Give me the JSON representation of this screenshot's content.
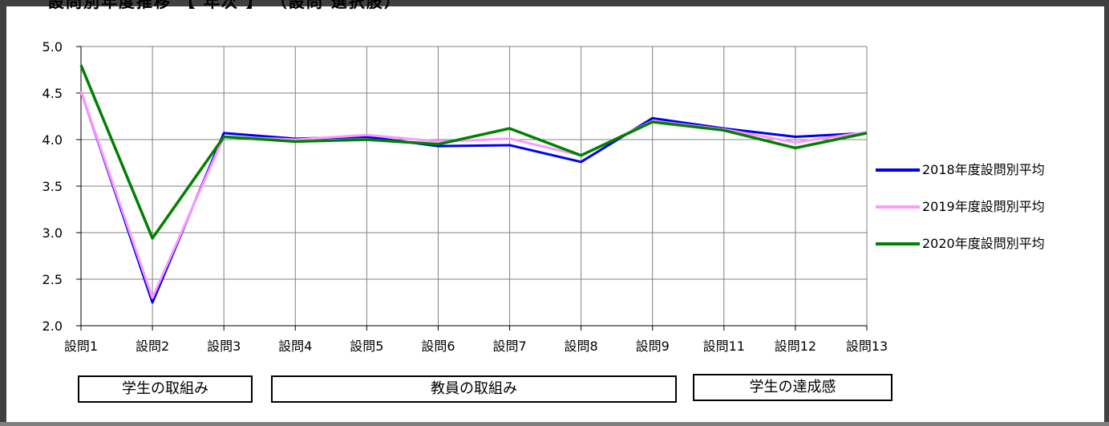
{
  "title": "設問別年度推移 【 年次 】 （設問 選択肢）",
  "chart_data": {
    "type": "line",
    "categories": [
      "設問1",
      "設問2",
      "設問3",
      "設問4",
      "設問5",
      "設問6",
      "設問7",
      "設問8",
      "設問9",
      "設問11",
      "設問12",
      "設問13"
    ],
    "ylim": [
      2.0,
      5.0
    ],
    "yticks": [
      "2.0",
      "2.5",
      "3.0",
      "3.5",
      "4.0",
      "4.5",
      "5.0"
    ],
    "ytick_values": [
      2.0,
      2.5,
      3.0,
      3.5,
      4.0,
      4.5,
      5.0
    ],
    "grid": true,
    "legend_position": "right",
    "series": [
      {
        "name": "2018年度設問別平均",
        "color": "#0000ee",
        "values": [
          4.52,
          2.25,
          4.07,
          4.01,
          4.03,
          3.93,
          3.94,
          3.76,
          4.23,
          4.12,
          4.03,
          4.07
        ]
      },
      {
        "name": "2019年度設問別平均",
        "color": "#ff99ff",
        "values": [
          4.52,
          2.3,
          4.03,
          4.0,
          4.05,
          3.98,
          4.01,
          3.83,
          4.2,
          4.11,
          3.97,
          4.08
        ]
      },
      {
        "name": "2020年度設問別平均",
        "color": "#008000",
        "values": [
          4.8,
          2.94,
          4.03,
          3.98,
          4.0,
          3.95,
          4.12,
          3.83,
          4.19,
          4.1,
          3.91,
          4.07
        ]
      }
    ]
  },
  "groups": [
    {
      "label": "学生の取組み"
    },
    {
      "label": "教員の取組み"
    },
    {
      "label": "学生の達成感"
    }
  ]
}
